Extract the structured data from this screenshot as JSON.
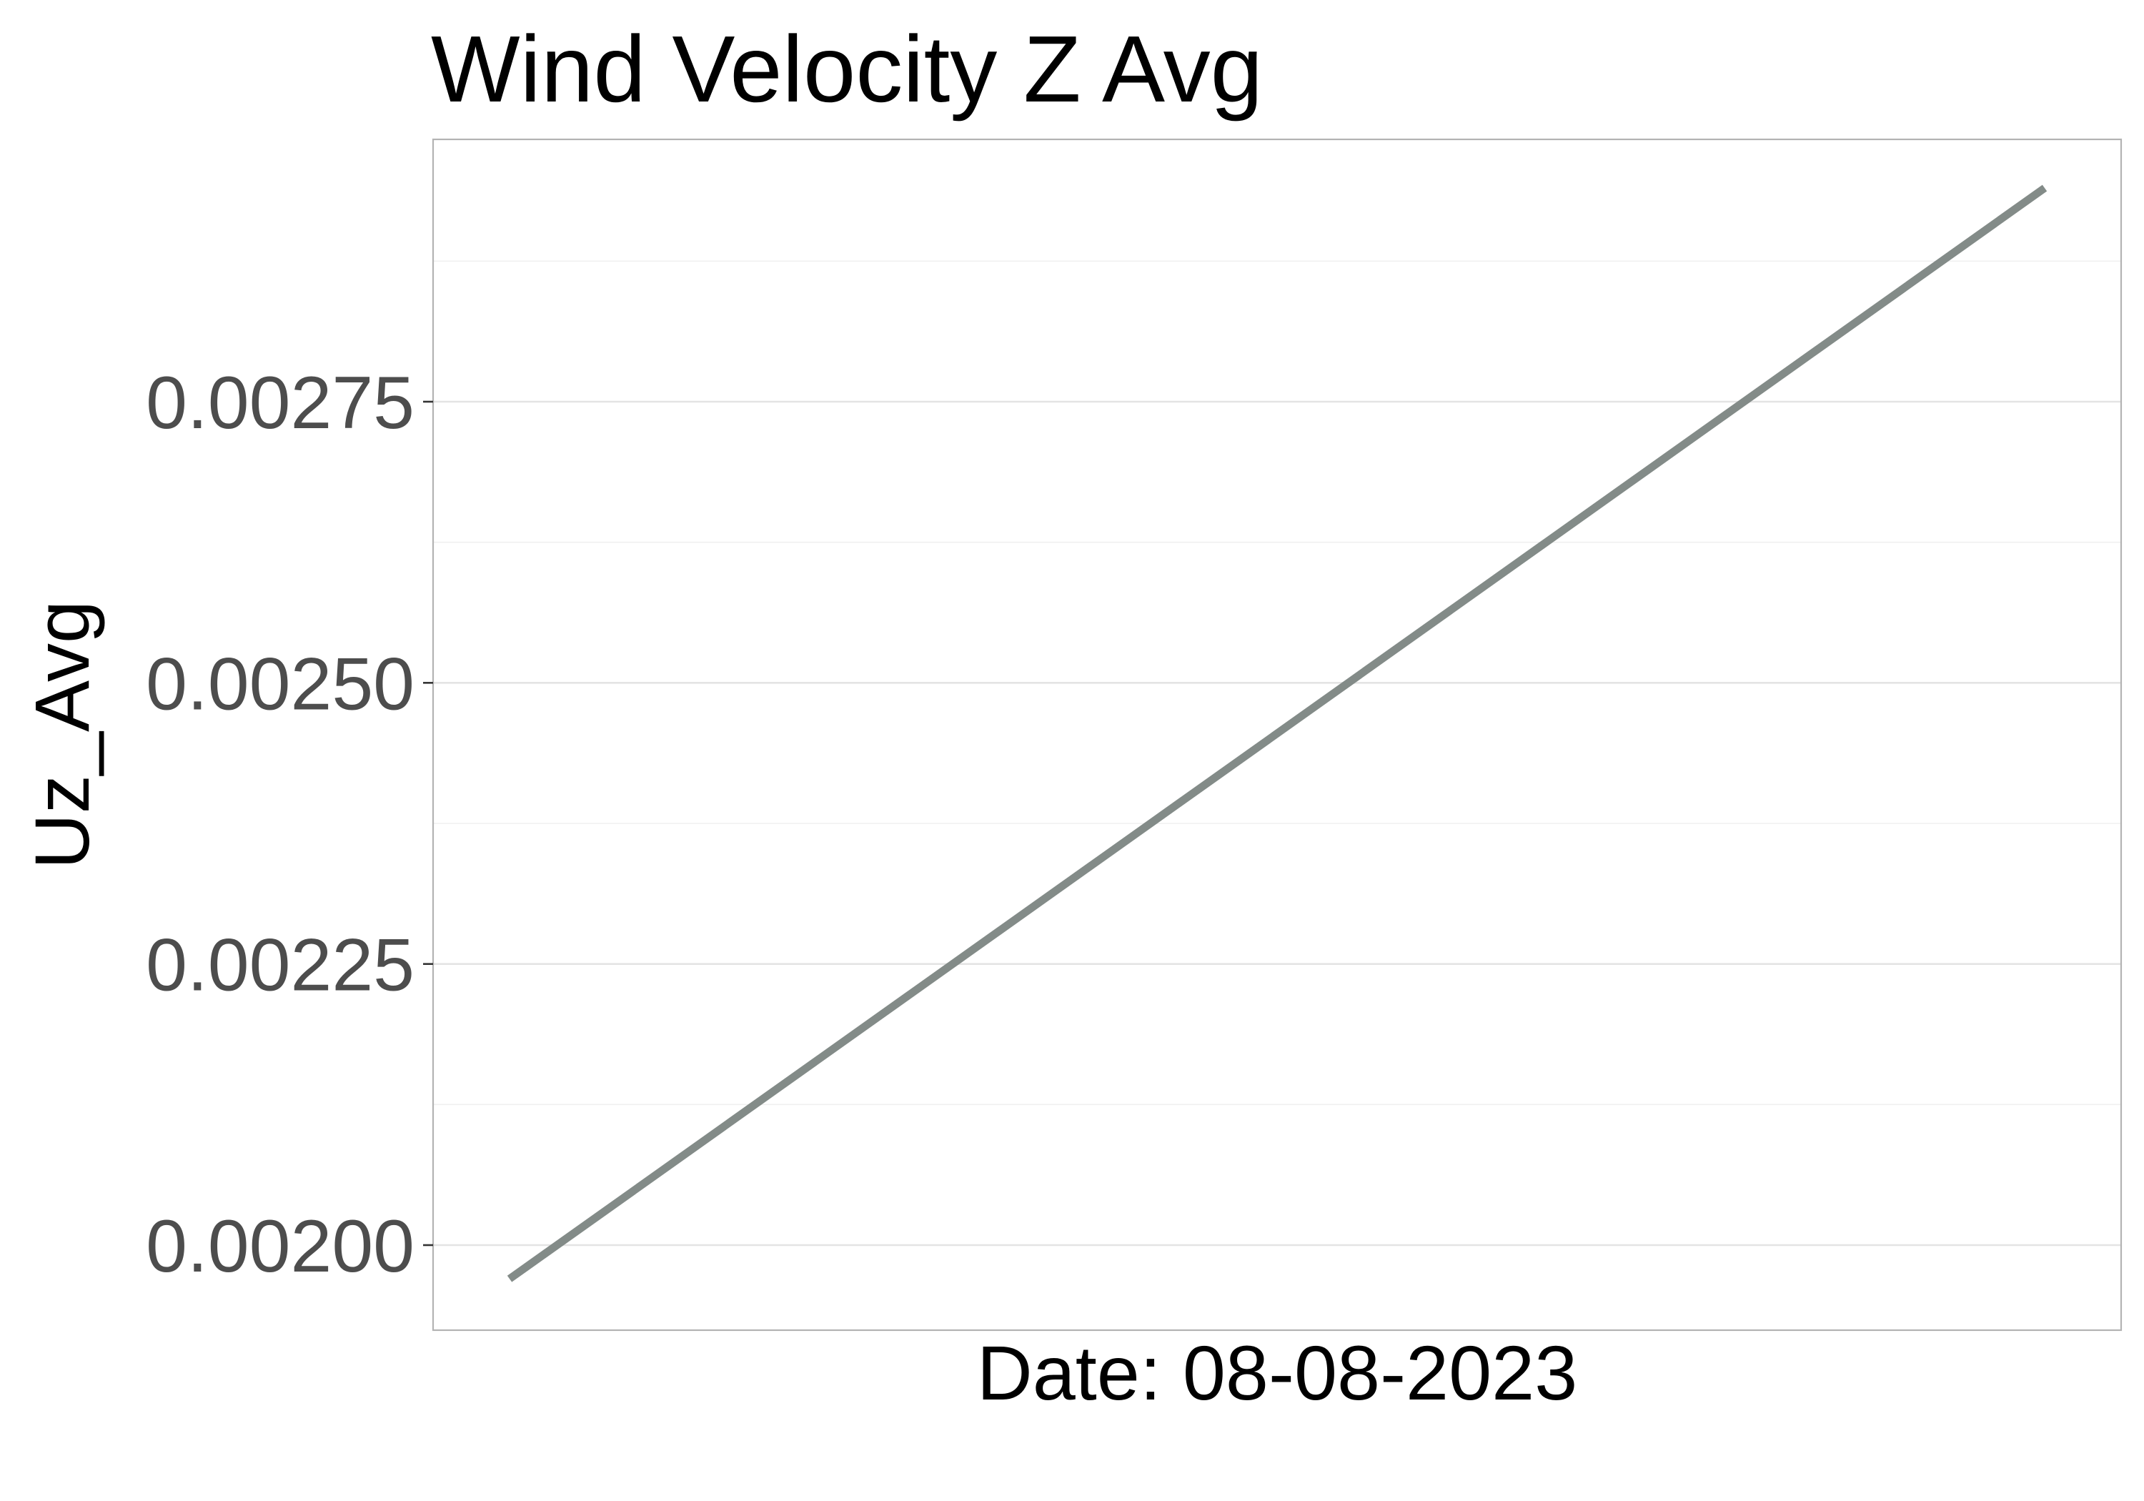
{
  "chart_data": {
    "type": "line",
    "title": "Wind Velocity Z Avg",
    "xlabel": "Date: 08-08-2023",
    "ylabel": "Uz_Avg",
    "ylim": [
      0.00197,
      0.00302
    ],
    "yticks": [
      0.002,
      0.00225,
      0.0025,
      0.00275
    ],
    "ytick_labels": [
      "0.00200",
      "0.00225",
      "0.00250",
      "0.00275"
    ],
    "grid": true,
    "legend": "none",
    "series": [
      {
        "color": "#838b88",
        "points": [
          {
            "x": 0,
            "y": 0.00197
          },
          {
            "x": 1,
            "y": 0.00294
          }
        ]
      }
    ]
  }
}
